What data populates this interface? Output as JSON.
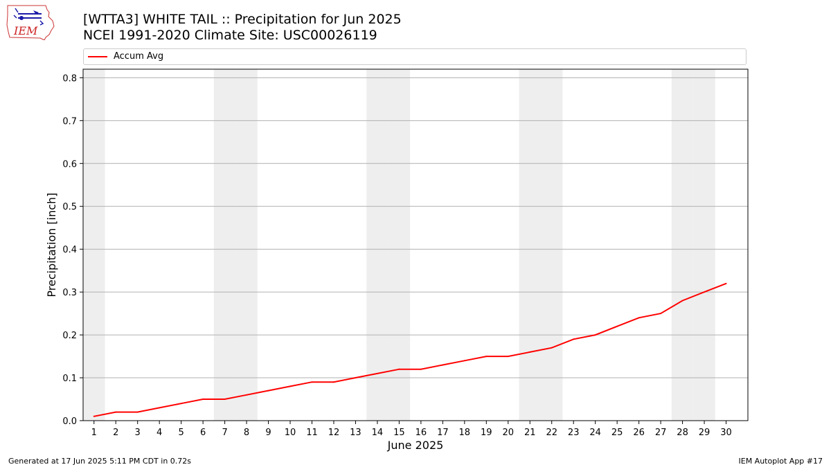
{
  "header": {
    "title_line1": "[WTTA3] WHITE TAIL :: Precipitation for Jun 2025",
    "title_line2": "NCEI 1991-2020 Climate Site: USC00026119",
    "logo_text": "IEM"
  },
  "footer": {
    "left": "Generated at 17 Jun 2025 5:11 PM CDT in 0.72s",
    "right": "IEM Autoplot App #17"
  },
  "colors": {
    "series": "#ff0000",
    "weekend_band": "#eeeeee",
    "grid": "#b0b0b0"
  },
  "chart_data": {
    "type": "line",
    "xlabel": "June 2025",
    "ylabel": "Precipitation [inch]",
    "xlim": [
      0.5,
      31.0
    ],
    "ylim": [
      0.0,
      0.82
    ],
    "yticks": [
      0.0,
      0.1,
      0.2,
      0.3,
      0.4,
      0.5,
      0.6,
      0.7,
      0.8
    ],
    "ytick_labels": [
      "0.0",
      "0.1",
      "0.2",
      "0.3",
      "0.4",
      "0.5",
      "0.6",
      "0.7",
      "0.8"
    ],
    "x": [
      1,
      2,
      3,
      4,
      5,
      6,
      7,
      8,
      9,
      10,
      11,
      12,
      13,
      14,
      15,
      16,
      17,
      18,
      19,
      20,
      21,
      22,
      23,
      24,
      25,
      26,
      27,
      28,
      29,
      30
    ],
    "xtick_labels": [
      "1",
      "2",
      "3",
      "4",
      "5",
      "6",
      "7",
      "8",
      "9",
      "10",
      "11",
      "12",
      "13",
      "14",
      "15",
      "16",
      "17",
      "18",
      "19",
      "20",
      "21",
      "22",
      "23",
      "24",
      "25",
      "26",
      "27",
      "28",
      "29",
      "30"
    ],
    "weekend_days": [
      1,
      7,
      8,
      14,
      15,
      21,
      22,
      28,
      29
    ],
    "grid": "y",
    "legend_position": "top",
    "series": [
      {
        "name": "Accum Avg",
        "values": [
          0.01,
          0.02,
          0.02,
          0.03,
          0.04,
          0.05,
          0.05,
          0.06,
          0.07,
          0.08,
          0.09,
          0.09,
          0.1,
          0.11,
          0.12,
          0.12,
          0.13,
          0.14,
          0.15,
          0.15,
          0.16,
          0.17,
          0.19,
          0.2,
          0.22,
          0.24,
          0.25,
          0.28,
          0.3,
          0.32
        ]
      }
    ]
  }
}
